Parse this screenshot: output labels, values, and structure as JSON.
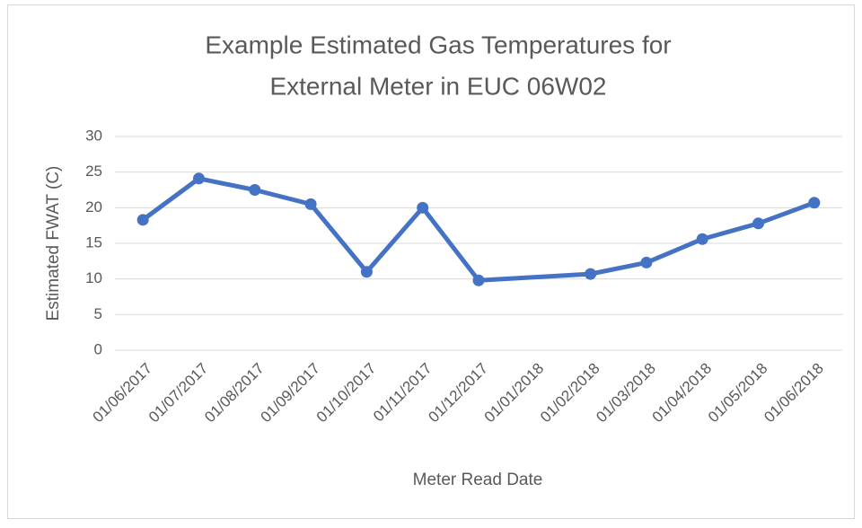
{
  "chart_data": {
    "type": "line",
    "title_lines": [
      "Example Estimated Gas Temperatures for",
      "External Meter in EUC 06W02"
    ],
    "x_label": "Meter Read Date",
    "y_label": "Estimated FWAT (C)",
    "categories": [
      "01/06/2017",
      "01/07/2017",
      "01/08/2017",
      "01/09/2017",
      "01/10/2017",
      "01/11/2017",
      "01/12/2017",
      "01/01/2018",
      "01/02/2018",
      "01/03/2018",
      "01/04/2018",
      "01/05/2018",
      "01/06/2018"
    ],
    "series": [
      {
        "name": "Estimated FWAT (C)",
        "color": "#4472c4",
        "values": [
          18.3,
          24.1,
          22.5,
          20.5,
          11.0,
          20.0,
          9.8,
          null,
          10.7,
          12.3,
          15.6,
          17.8,
          20.7
        ]
      }
    ],
    "ylim": [
      0,
      30
    ],
    "yticks": [
      0,
      5,
      10,
      15,
      20,
      25,
      30
    ],
    "grid": true,
    "markers": true,
    "connect_gaps": true
  }
}
